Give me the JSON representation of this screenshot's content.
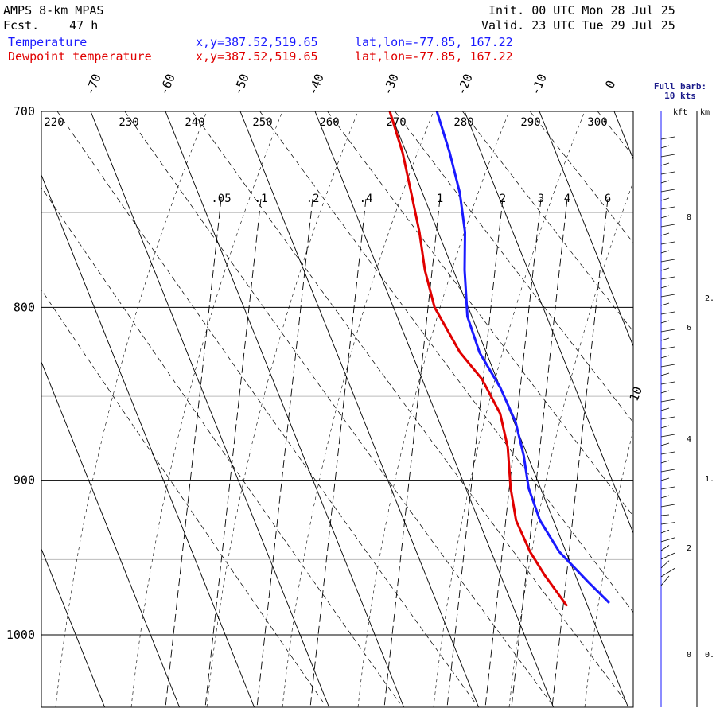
{
  "header": {
    "model": "AMPS 8-km MPAS",
    "fcst_label": "Fcst.",
    "fcst_value": "47 h",
    "init_label": "Init.",
    "init_value": "00 UTC Mon 28 Jul 25",
    "valid_label": "Valid.",
    "valid_value": "23 UTC Tue 29 Jul 25"
  },
  "legend": [
    {
      "name": "Temperature",
      "xy": "x,y=387.52,519.65",
      "latlon": "lat,lon=-77.85, 167.22",
      "color": "#1a1aff"
    },
    {
      "name": "Dewpoint temperature",
      "xy": "x,y=387.52,519.65",
      "latlon": "lat,lon=-77.85, 167.22",
      "color": "#e00000"
    }
  ],
  "barb_panel": {
    "title_line1": "Full barb:",
    "title_line2": "10 kts",
    "kft_label": "kft",
    "km_label": "km",
    "kft_ticks": [
      "8",
      "6",
      "4",
      "2",
      "0"
    ],
    "km_ticks": [
      "2.",
      "1.",
      "0."
    ]
  },
  "chart_data": {
    "type": "line",
    "chart_kind": "skew-T log-p sounding",
    "y_axis": {
      "scale": "log",
      "reversed": true,
      "ylim": [
        1040,
        700
      ],
      "ticks": [
        700,
        800,
        900,
        1000
      ],
      "tick_labels": [
        "700",
        "800",
        "900",
        "1000"
      ]
    },
    "x_axis_label": "",
    "isotherm_labels": [
      "-70",
      "-60",
      "-50",
      "-40",
      "-30",
      "-20",
      "-10",
      "0",
      "10"
    ],
    "dry_adiabat_labels": [
      "220",
      "230",
      "240",
      "250",
      "260",
      "270",
      "280",
      "290",
      "300"
    ],
    "mixing_ratio_labels": [
      ".05",
      ".1",
      ".2",
      ".4",
      "1",
      "2",
      "3",
      "4",
      "6"
    ],
    "series": [
      {
        "name": "Temperature",
        "color": "#1a1aff",
        "points": [
          [
            978,
            -27.0
          ],
          [
            965,
            -28.6
          ],
          [
            945,
            -30.9
          ],
          [
            925,
            -31.8
          ],
          [
            905,
            -31.6
          ],
          [
            885,
            -30.5
          ],
          [
            865,
            -29.8
          ],
          [
            845,
            -30.0
          ],
          [
            825,
            -30.9
          ],
          [
            805,
            -30.6
          ],
          [
            780,
            -28.5
          ],
          [
            760,
            -26.4
          ],
          [
            740,
            -25.0
          ],
          [
            720,
            -24.2
          ],
          [
            700,
            -23.7
          ]
        ]
      },
      {
        "name": "Dewpoint temperature",
        "color": "#e00000",
        "points": [
          [
            980,
            -32.8
          ],
          [
            960,
            -34.1
          ],
          [
            945,
            -34.8
          ],
          [
            925,
            -35.0
          ],
          [
            905,
            -34.0
          ],
          [
            880,
            -32.2
          ],
          [
            860,
            -31.4
          ],
          [
            840,
            -32.0
          ],
          [
            825,
            -33.5
          ],
          [
            800,
            -34.5
          ],
          [
            780,
            -33.8
          ],
          [
            760,
            -32.5
          ],
          [
            740,
            -31.5
          ],
          [
            720,
            -30.5
          ],
          [
            700,
            -30.0
          ]
        ]
      }
    ],
    "grid": true
  }
}
